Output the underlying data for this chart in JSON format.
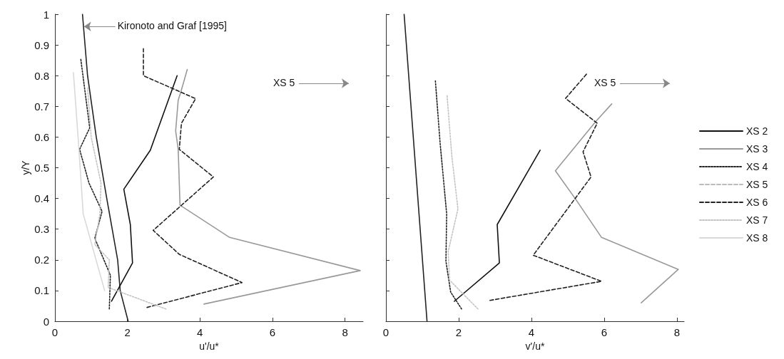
{
  "chart_data": [
    {
      "type": "line",
      "xlabel": "u'/u*",
      "ylabel": "y/Y",
      "xlim": [
        0,
        8.5
      ],
      "xticks": [
        0,
        2,
        4,
        6,
        8
      ],
      "ylim": [
        0,
        1
      ],
      "yticks": [
        0,
        0.1,
        0.2,
        0.3,
        0.4,
        0.5,
        0.6,
        0.7,
        0.8,
        0.9,
        1
      ],
      "marker": "none",
      "legend": "right",
      "annotations": [
        {
          "text": "Kironoto and Graf [1995]",
          "x": 0.8,
          "y": 0.96
        },
        "XS 5"
      ],
      "series": [
        {
          "color": "#222222",
          "line_style": "solid",
          "x": [
            0.76,
            0.9,
            1.14,
            1.43,
            1.73,
            1.8,
            2.02
          ],
          "values": [
            1,
            0.8,
            0.6,
            0.4,
            0.2,
            0.1,
            0
          ]
        },
        {
          "name": "XS 2",
          "color": "#111111",
          "line_style": "solid",
          "x": [
            1.56,
            2.14,
            2.08,
            1.9,
            2.63,
            3.37
          ],
          "values": [
            0.065,
            0.19,
            0.315,
            0.43,
            0.557,
            0.8
          ]
        },
        {
          "name": "XS 3",
          "color": "#999999",
          "line_style": "solid",
          "x": [
            4.11,
            8.42,
            4.82,
            3.45,
            3.4,
            3.33,
            3.4,
            3.48,
            3.65
          ],
          "values": [
            0.056,
            0.165,
            0.273,
            0.378,
            0.56,
            0.62,
            0.72,
            0.75,
            0.82
          ]
        },
        {
          "name": "XS 4",
          "color": "#222222",
          "line_style": "dotted",
          "x": [
            1.5,
            1.53,
            1.1,
            1.3,
            0.94,
            0.68,
            0.96,
            0.71
          ],
          "values": [
            0.04,
            0.15,
            0.27,
            0.358,
            0.45,
            0.56,
            0.63,
            0.857
          ]
        },
        {
          "name": "XS 5",
          "color": "#bbbbbb",
          "line_style": "dashed"
        },
        {
          "name": "XS 6",
          "color": "#222222",
          "line_style": "dashed",
          "x": [
            2.54,
            5.16,
            3.43,
            2.71,
            4.37,
            3.43,
            3.49,
            3.88,
            2.44,
            2.44
          ],
          "values": [
            0.045,
            0.126,
            0.218,
            0.296,
            0.47,
            0.56,
            0.645,
            0.725,
            0.8,
            0.888
          ]
        },
        {
          "name": "XS 7",
          "color": "#c4c4c4",
          "line_style": "dotted",
          "x": [
            3.06,
            1.47,
            1.5,
            1.1,
            1.24,
            1.27,
            1.0,
            0.9
          ],
          "values": [
            0.04,
            0.11,
            0.2,
            0.25,
            0.35,
            0.45,
            0.6,
            0.76
          ]
        },
        {
          "name": "XS 8",
          "color": "#d9d9d9",
          "line_style": "solid",
          "x": [
            1.37,
            0.78,
            0.65,
            0.51
          ],
          "values": [
            0.1,
            0.35,
            0.58,
            0.81
          ]
        }
      ]
    },
    {
      "type": "line",
      "xlabel": "v'/u*",
      "xlim": [
        0,
        8.2
      ],
      "xticks": [
        0,
        2,
        4,
        6,
        8
      ],
      "ylim": [
        0,
        1
      ],
      "yticks": [
        0,
        0.1,
        0.2,
        0.3,
        0.4,
        0.5,
        0.6,
        0.7,
        0.8,
        0.9,
        1
      ],
      "tick_labels": "x",
      "marker": "none",
      "annotations": [
        "XS 5"
      ],
      "series": [
        {
          "color": "#222222",
          "line_style": "solid",
          "x": [
            0.5,
            1.13
          ],
          "values": [
            1,
            0
          ]
        },
        {
          "color": "#111111",
          "line_style": "solid",
          "x": [
            1.88,
            3.12,
            3.06,
            4.24
          ],
          "values": [
            0.065,
            0.19,
            0.315,
            0.557
          ]
        },
        {
          "color": "#999999",
          "line_style": "solid",
          "x": [
            7.02,
            8.04,
            5.93,
            5.22,
            4.66,
            5.78,
            6.21
          ],
          "values": [
            0.06,
            0.169,
            0.273,
            0.397,
            0.49,
            0.652,
            0.708
          ]
        },
        {
          "color": "#222222",
          "line_style": "dotted",
          "x": [
            2.08,
            1.78,
            1.65,
            1.67,
            1.49,
            1.36
          ],
          "values": [
            0.04,
            0.095,
            0.195,
            0.35,
            0.58,
            0.783
          ]
        },
        {
          "color": "#222222",
          "line_style": "dashed",
          "x": [
            2.86,
            5.93,
            4.05,
            5.64,
            5.42,
            5.81,
            4.94,
            5.53
          ],
          "values": [
            0.068,
            0.13,
            0.215,
            0.47,
            0.552,
            0.645,
            0.726,
            0.807
          ]
        },
        {
          "color": "#c4c4c4",
          "line_style": "dotted",
          "x": [
            2.53,
            1.75,
            1.71,
            1.98,
            1.81,
            1.68
          ],
          "values": [
            0.04,
            0.134,
            0.226,
            0.366,
            0.54,
            0.737
          ]
        }
      ]
    }
  ]
}
